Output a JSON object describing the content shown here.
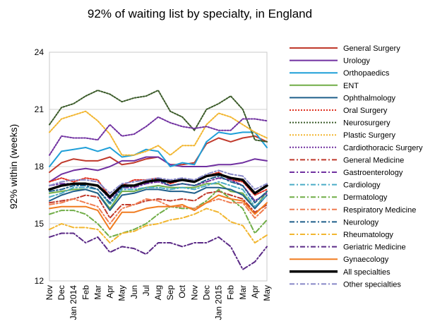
{
  "chart_data": {
    "type": "line",
    "title": "92% of waiting list by specialty, in England",
    "xlabel": "",
    "ylabel": "92% within (weeks)",
    "ylim": [
      12,
      24
    ],
    "yticks": [
      12,
      15,
      18,
      21,
      24
    ],
    "grid": "horizontal",
    "legend_position": "right",
    "categories": [
      "Nov",
      "Dec",
      "Jan 2014",
      "Feb",
      "Mar",
      "Apr",
      "May",
      "Jun",
      "Jul",
      "Aug",
      "Sep",
      "Oct",
      "Nov",
      "Dec",
      "Jan 2015",
      "Feb",
      "Mar",
      "Apr",
      "May"
    ],
    "series": [
      {
        "name": "General Surgery",
        "color": "#c0392b",
        "style": "solid",
        "width": 2,
        "values": [
          17.7,
          18.2,
          18.4,
          18.3,
          18.3,
          18.5,
          18.1,
          18.2,
          18.4,
          18.5,
          18.1,
          18.1,
          18.2,
          19.2,
          19.5,
          19.3,
          19.5,
          19.6,
          19.3
        ]
      },
      {
        "name": "Urology",
        "color": "#7030a0",
        "style": "solid",
        "width": 2,
        "values": [
          17.2,
          17.6,
          17.8,
          17.9,
          17.8,
          18.0,
          18.3,
          18.3,
          18.5,
          18.5,
          18.1,
          18.0,
          18.0,
          18.0,
          18.1,
          18.1,
          18.2,
          18.4,
          18.3
        ]
      },
      {
        "name": "Orthopaedics",
        "color": "#1f9fd8",
        "style": "solid",
        "width": 2,
        "values": [
          18.0,
          18.8,
          18.9,
          19.0,
          18.8,
          19.0,
          18.5,
          18.6,
          18.9,
          18.8,
          18.0,
          18.2,
          18.1,
          19.3,
          19.8,
          19.7,
          19.8,
          19.8,
          19.0
        ]
      },
      {
        "name": "ENT",
        "color": "#70ad47",
        "style": "solid",
        "width": 2,
        "values": [
          16.6,
          16.7,
          16.8,
          16.8,
          16.6,
          15.8,
          16.7,
          16.7,
          16.9,
          17.0,
          16.9,
          16.9,
          16.9,
          17.1,
          17.1,
          16.7,
          16.6,
          15.8,
          16.7
        ]
      },
      {
        "name": "Ophthalmology",
        "color": "#1f5f8b",
        "style": "solid",
        "width": 2,
        "values": [
          16.2,
          16.5,
          16.7,
          16.8,
          16.6,
          15.7,
          16.5,
          16.6,
          16.8,
          16.8,
          16.7,
          16.7,
          16.6,
          16.9,
          16.9,
          16.8,
          16.5,
          15.8,
          16.5
        ]
      },
      {
        "name": "Oral Surgery",
        "color": "#e03020",
        "style": "dotted",
        "width": 2,
        "values": [
          17.2,
          17.4,
          17.2,
          17.4,
          17.3,
          16.4,
          17.0,
          17.3,
          17.3,
          17.4,
          17.1,
          17.3,
          17.2,
          17.5,
          17.7,
          17.3,
          17.2,
          16.5,
          16.8
        ]
      },
      {
        "name": "Neurosurgery",
        "color": "#3a5a28",
        "style": "dotted",
        "width": 2,
        "values": [
          20.2,
          21.1,
          21.3,
          21.7,
          22.0,
          21.8,
          21.4,
          21.6,
          21.7,
          22.0,
          20.9,
          20.6,
          19.9,
          21.0,
          21.3,
          21.7,
          21.0,
          19.4,
          19.3
        ]
      },
      {
        "name": "Plastic Surgery",
        "color": "#f2b630",
        "style": "dotted",
        "width": 2,
        "values": [
          19.8,
          20.5,
          20.7,
          20.9,
          20.4,
          19.7,
          18.6,
          18.6,
          18.8,
          19.1,
          18.6,
          19.1,
          19.1,
          20.2,
          20.8,
          20.6,
          20.2,
          19.8,
          19.5
        ]
      },
      {
        "name": "Cardiothoracic Surgery",
        "color": "#7030a0",
        "style": "dotted",
        "width": 2,
        "values": [
          18.6,
          19.6,
          19.5,
          19.5,
          19.4,
          20.2,
          19.6,
          19.7,
          20.1,
          20.6,
          20.3,
          20.1,
          20.0,
          20.1,
          19.9,
          19.9,
          20.5,
          20.5,
          20.4
        ]
      },
      {
        "name": "General Medicine",
        "color": "#c0392b",
        "style": "dashdot",
        "width": 2,
        "values": [
          16.1,
          16.2,
          16.3,
          16.5,
          16.4,
          15.3,
          16.0,
          16.0,
          16.2,
          16.3,
          16.2,
          16.3,
          16.2,
          16.6,
          16.7,
          16.5,
          16.3,
          15.6,
          16.0
        ]
      },
      {
        "name": "Gastroenterology",
        "color": "#7030a0",
        "style": "dashdot",
        "width": 2,
        "values": [
          17.0,
          17.1,
          17.1,
          17.1,
          17.0,
          16.3,
          16.9,
          16.9,
          17.1,
          17.2,
          17.0,
          17.1,
          17.0,
          17.2,
          17.4,
          17.3,
          17.0,
          16.2,
          16.6
        ]
      },
      {
        "name": "Cardiology",
        "color": "#4bacc6",
        "style": "dashdot",
        "width": 2,
        "values": [
          16.4,
          16.6,
          16.9,
          16.9,
          16.8,
          16.0,
          16.8,
          16.8,
          16.9,
          16.9,
          16.8,
          16.9,
          16.8,
          17.0,
          17.2,
          17.0,
          16.8,
          15.9,
          16.5
        ]
      },
      {
        "name": "Dermatology",
        "color": "#70ad47",
        "style": "dashdot",
        "width": 2,
        "values": [
          15.5,
          15.7,
          15.7,
          15.5,
          15.0,
          14.3,
          14.5,
          14.7,
          15.0,
          15.5,
          15.9,
          15.8,
          15.8,
          16.2,
          16.8,
          16.3,
          15.8,
          14.5,
          15.2
        ]
      },
      {
        "name": "Respiratory Medicine",
        "color": "#f07c50",
        "style": "dashdot",
        "width": 2,
        "values": [
          16.0,
          16.1,
          16.3,
          16.1,
          15.9,
          15.0,
          15.8,
          16.0,
          16.3,
          16.2,
          15.9,
          15.9,
          15.8,
          16.1,
          16.3,
          16.1,
          16.1,
          15.3,
          15.9
        ]
      },
      {
        "name": "Neurology",
        "color": "#1f5f8b",
        "style": "dashdot",
        "width": 2,
        "values": [
          16.7,
          16.8,
          17.0,
          17.0,
          16.8,
          16.1,
          16.9,
          17.0,
          17.2,
          17.3,
          17.0,
          17.1,
          17.0,
          17.3,
          17.5,
          17.2,
          17.0,
          16.1,
          16.7
        ]
      },
      {
        "name": "Rheumatology",
        "color": "#f2b630",
        "style": "dashdot",
        "width": 2,
        "values": [
          14.7,
          15.0,
          14.8,
          14.8,
          14.7,
          14.0,
          14.5,
          14.6,
          14.9,
          15.0,
          15.2,
          15.3,
          15.5,
          15.8,
          15.6,
          15.1,
          14.9,
          14.0,
          14.4
        ]
      },
      {
        "name": "Geriatric Medicine",
        "color": "#5b2a86",
        "style": "dashdot",
        "width": 2,
        "values": [
          14.3,
          14.5,
          14.5,
          14.0,
          14.3,
          13.5,
          13.8,
          13.7,
          13.4,
          14.0,
          14.0,
          13.8,
          14.0,
          14.0,
          14.3,
          13.8,
          12.6,
          13.0,
          13.8
        ]
      },
      {
        "name": "Gynaecology",
        "color": "#f07c20",
        "style": "solid",
        "width": 2,
        "values": [
          15.8,
          15.9,
          15.9,
          15.9,
          15.7,
          14.7,
          15.6,
          15.6,
          15.8,
          15.9,
          15.9,
          16.0,
          15.7,
          16.1,
          16.5,
          16.3,
          16.2,
          15.5,
          16.1
        ]
      },
      {
        "name": "All specialties",
        "color": "#000000",
        "style": "solid",
        "width": 3.5,
        "values": [
          16.8,
          17.0,
          17.1,
          17.1,
          17.0,
          16.4,
          17.0,
          17.0,
          17.2,
          17.3,
          17.2,
          17.3,
          17.2,
          17.5,
          17.6,
          17.4,
          17.3,
          16.6,
          17.0
        ]
      },
      {
        "name": "Other specialties",
        "color": "#8888c8",
        "style": "dashdot",
        "width": 2,
        "values": [
          17.0,
          17.2,
          17.3,
          17.3,
          17.2,
          16.6,
          17.1,
          17.2,
          17.3,
          17.4,
          17.3,
          17.4,
          17.3,
          17.6,
          17.8,
          17.6,
          17.5,
          16.8,
          17.1
        ]
      }
    ]
  }
}
